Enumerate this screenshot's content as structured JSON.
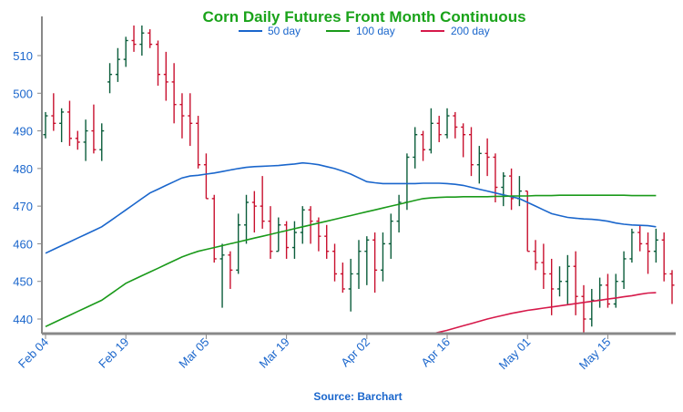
{
  "chart_data": {
    "type": "ohlc",
    "title": "Corn Daily Futures Front Month Continuous",
    "source": "Source: Barchart",
    "ylim": [
      436,
      520
    ],
    "y_ticks": [
      440,
      450,
      460,
      470,
      480,
      490,
      500,
      510
    ],
    "x_tick_labels": [
      "Feb 04",
      "Feb 19",
      "Mar 05",
      "Mar 19",
      "Apr 02",
      "Apr 16",
      "May 01",
      "May 15"
    ],
    "x_tick_index": [
      0,
      10,
      20,
      30,
      40,
      50,
      60,
      70
    ],
    "grid": false,
    "legend_position": "top-center",
    "colors": {
      "up": "#0b5d3b",
      "down": "#c8102e",
      "ma50": "#1a66cc",
      "ma100": "#1a9a1a",
      "ma200": "#d6194a",
      "axis": "#888888"
    },
    "series": [
      {
        "name": "50 day",
        "color": "#1a66cc",
        "values": [
          457.5,
          458.5,
          459.5,
          460.5,
          461.5,
          462.5,
          463.5,
          464.5,
          466,
          467.5,
          469,
          470.5,
          472,
          473.5,
          474.5,
          475.5,
          476.5,
          477.5,
          478,
          478.2,
          478.5,
          478.8,
          479.2,
          479.6,
          480,
          480.3,
          480.5,
          480.6,
          480.7,
          480.8,
          481,
          481.2,
          481.5,
          481.3,
          481,
          480.5,
          480,
          479.3,
          478.5,
          477.5,
          476.5,
          476.2,
          476,
          476,
          476,
          476,
          476,
          476.1,
          476.1,
          476.1,
          476,
          475.8,
          475.5,
          475,
          474.5,
          474,
          473.5,
          473,
          472.5,
          472,
          471,
          470,
          469,
          468,
          467.5,
          467,
          466.8,
          466.6,
          466.5,
          466.3,
          466,
          465.5,
          465.2,
          465,
          464.9,
          464.8,
          464.5
        ]
      },
      {
        "name": "100 day",
        "color": "#1a9a1a",
        "values": [
          438,
          439,
          440,
          441,
          442,
          443,
          444,
          445,
          446.5,
          448,
          449.5,
          450.5,
          451.5,
          452.5,
          453.5,
          454.5,
          455.5,
          456.5,
          457.3,
          458,
          458.5,
          459,
          459.5,
          460,
          460.5,
          461,
          461.5,
          462,
          462.5,
          463,
          463.5,
          464,
          464.5,
          465,
          465.5,
          466,
          466.5,
          467,
          467.5,
          468,
          468.5,
          469,
          469.5,
          470,
          470.5,
          471,
          471.5,
          472,
          472.2,
          472.3,
          472.4,
          472.4,
          472.5,
          472.5,
          472.5,
          472.5,
          472.6,
          472.6,
          472.7,
          472.7,
          472.7,
          472.8,
          472.8,
          472.8,
          472.9,
          472.9,
          472.9,
          472.9,
          472.9,
          472.9,
          472.9,
          472.9,
          472.9,
          472.8,
          472.8,
          472.8,
          472.8
        ]
      },
      {
        "name": "200 day",
        "color": "#d6194a",
        "x_start": 48,
        "values": [
          436,
          436.5,
          437,
          437.6,
          438.2,
          438.8,
          439.4,
          440,
          440.5,
          441,
          441.5,
          441.9,
          442.3,
          442.6,
          442.9,
          443.2,
          443.5,
          443.8,
          444.1,
          444.4,
          444.7,
          445,
          445.3,
          445.6,
          445.9,
          446.2,
          446.6,
          446.9,
          447
        ]
      }
    ],
    "ohlc": [
      [
        489,
        495,
        488,
        494
      ],
      [
        494,
        500,
        490,
        492
      ],
      [
        492,
        496,
        487,
        495
      ],
      [
        495,
        498,
        486,
        488
      ],
      [
        488,
        490,
        485,
        487
      ],
      [
        487,
        493,
        482,
        490
      ],
      [
        490,
        497,
        484,
        485
      ],
      [
        485,
        492,
        482,
        490
      ],
      [
        503,
        508,
        500,
        505
      ],
      [
        505,
        512,
        503,
        509
      ],
      [
        509,
        515,
        507,
        514
      ],
      [
        514,
        518,
        511,
        513
      ],
      [
        513,
        518,
        510,
        516
      ],
      [
        516,
        517,
        512,
        513
      ],
      [
        513,
        514,
        502,
        505
      ],
      [
        505,
        511,
        498,
        503
      ],
      [
        503,
        508,
        492,
        497
      ],
      [
        497,
        500,
        488,
        494
      ],
      [
        494,
        500,
        486,
        492
      ],
      [
        492,
        494,
        480,
        481
      ],
      [
        481,
        484,
        472,
        472
      ],
      [
        472,
        473,
        455,
        456
      ],
      [
        456,
        460,
        443,
        457
      ],
      [
        457,
        458,
        448,
        453
      ],
      [
        453,
        468,
        452,
        465
      ],
      [
        465,
        473,
        460,
        471
      ],
      [
        471,
        474,
        463,
        470
      ],
      [
        470,
        478,
        464,
        466
      ],
      [
        466,
        470,
        456,
        458
      ],
      [
        458,
        467,
        458,
        465
      ],
      [
        465,
        466,
        456,
        459
      ],
      [
        459,
        466,
        456,
        463
      ],
      [
        463,
        470,
        460,
        469
      ],
      [
        469,
        470,
        460,
        466
      ],
      [
        466,
        467,
        458,
        462
      ],
      [
        462,
        465,
        456,
        458
      ],
      [
        458,
        460,
        450,
        452
      ],
      [
        452,
        455,
        447,
        448
      ],
      [
        448,
        456,
        442,
        452
      ],
      [
        452,
        461,
        448,
        458
      ],
      [
        458,
        462,
        449,
        461
      ],
      [
        461,
        463,
        447,
        453
      ],
      [
        453,
        463,
        450,
        460
      ],
      [
        460,
        468,
        456,
        466
      ],
      [
        466,
        473,
        463,
        471
      ],
      [
        471,
        484,
        469,
        483
      ],
      [
        483,
        491,
        480,
        489
      ],
      [
        489,
        490,
        482,
        485
      ],
      [
        485,
        496,
        484,
        492
      ],
      [
        492,
        494,
        487,
        489
      ],
      [
        489,
        496,
        488,
        494
      ],
      [
        494,
        495,
        488,
        491
      ],
      [
        491,
        492,
        483,
        489
      ],
      [
        489,
        491,
        478,
        481
      ],
      [
        481,
        486,
        476,
        484
      ],
      [
        484,
        488,
        478,
        483
      ],
      [
        483,
        484,
        471,
        475
      ],
      [
        475,
        479,
        470,
        478
      ],
      [
        478,
        480,
        469,
        472
      ],
      [
        472,
        478,
        470,
        474
      ],
      [
        474,
        474,
        458,
        458
      ],
      [
        458,
        461,
        453,
        455
      ],
      [
        455,
        460,
        448,
        452
      ],
      [
        452,
        456,
        441,
        448
      ],
      [
        448,
        454,
        446,
        450
      ],
      [
        450,
        457,
        444,
        454
      ],
      [
        454,
        458,
        441,
        446
      ],
      [
        446,
        449,
        436,
        440
      ],
      [
        440,
        448,
        438,
        445
      ],
      [
        445,
        451,
        443,
        449
      ],
      [
        449,
        452,
        443,
        444
      ],
      [
        444,
        452,
        443,
        450
      ],
      [
        450,
        458,
        448,
        456
      ],
      [
        456,
        464,
        455,
        463
      ],
      [
        463,
        465,
        458,
        460
      ],
      [
        460,
        463,
        452,
        458
      ],
      [
        458,
        464,
        455,
        461
      ],
      [
        461,
        463,
        450,
        452
      ],
      [
        452,
        453,
        444,
        449
      ]
    ]
  }
}
